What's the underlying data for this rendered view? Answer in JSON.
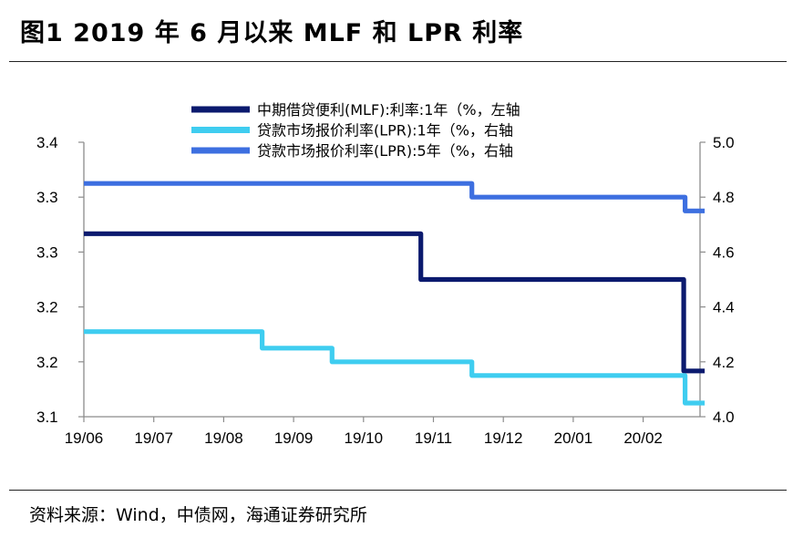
{
  "header": {
    "title": "图1  2019 年 6 月以来 MLF 和 LPR 利率"
  },
  "footer": {
    "source": "资料来源：Wind，中债网，海通证券研究所"
  },
  "chart_data": {
    "type": "line",
    "x_categories": [
      "19/06",
      "19/07",
      "19/08",
      "19/09",
      "19/10",
      "19/11",
      "19/12",
      "20/01",
      "20/02"
    ],
    "x_index_range": [
      0,
      8.88
    ],
    "left_axis": {
      "ylim": [
        3.1,
        3.4
      ],
      "ticks": [
        "3.1",
        "3.2",
        "3.2",
        "3.3",
        "3.3",
        "3.4"
      ]
    },
    "right_axis": {
      "ylim": [
        4.0,
        5.0
      ],
      "ticks": [
        "4.0",
        "4.2",
        "4.4",
        "4.6",
        "4.8",
        "5.0"
      ]
    },
    "legend_position": "top-center",
    "series": [
      {
        "name": "中期借贷便利(MLF):利率:1年（%，左轴",
        "axis": "left",
        "color": "#0b1a6e",
        "x": [
          0,
          4.82,
          4.82,
          8.58,
          8.58,
          8.88
        ],
        "values": [
          3.3,
          3.3,
          3.25,
          3.25,
          3.15,
          3.15
        ]
      },
      {
        "name": "贷款市场报价利率(LPR):1年（%，右轴",
        "axis": "right",
        "color": "#3fcdf0",
        "x": [
          0,
          2.55,
          2.55,
          3.55,
          3.55,
          5.55,
          5.55,
          8.6,
          8.6,
          8.88
        ],
        "values": [
          4.31,
          4.31,
          4.25,
          4.25,
          4.2,
          4.2,
          4.15,
          4.15,
          4.05,
          4.05
        ]
      },
      {
        "name": "贷款市场报价利率(LPR):5年（%，右轴",
        "axis": "right",
        "color": "#3d6fe0",
        "x": [
          0,
          5.55,
          5.55,
          8.6,
          8.6,
          8.88
        ],
        "values": [
          4.85,
          4.85,
          4.8,
          4.8,
          4.75,
          4.75
        ]
      }
    ]
  }
}
